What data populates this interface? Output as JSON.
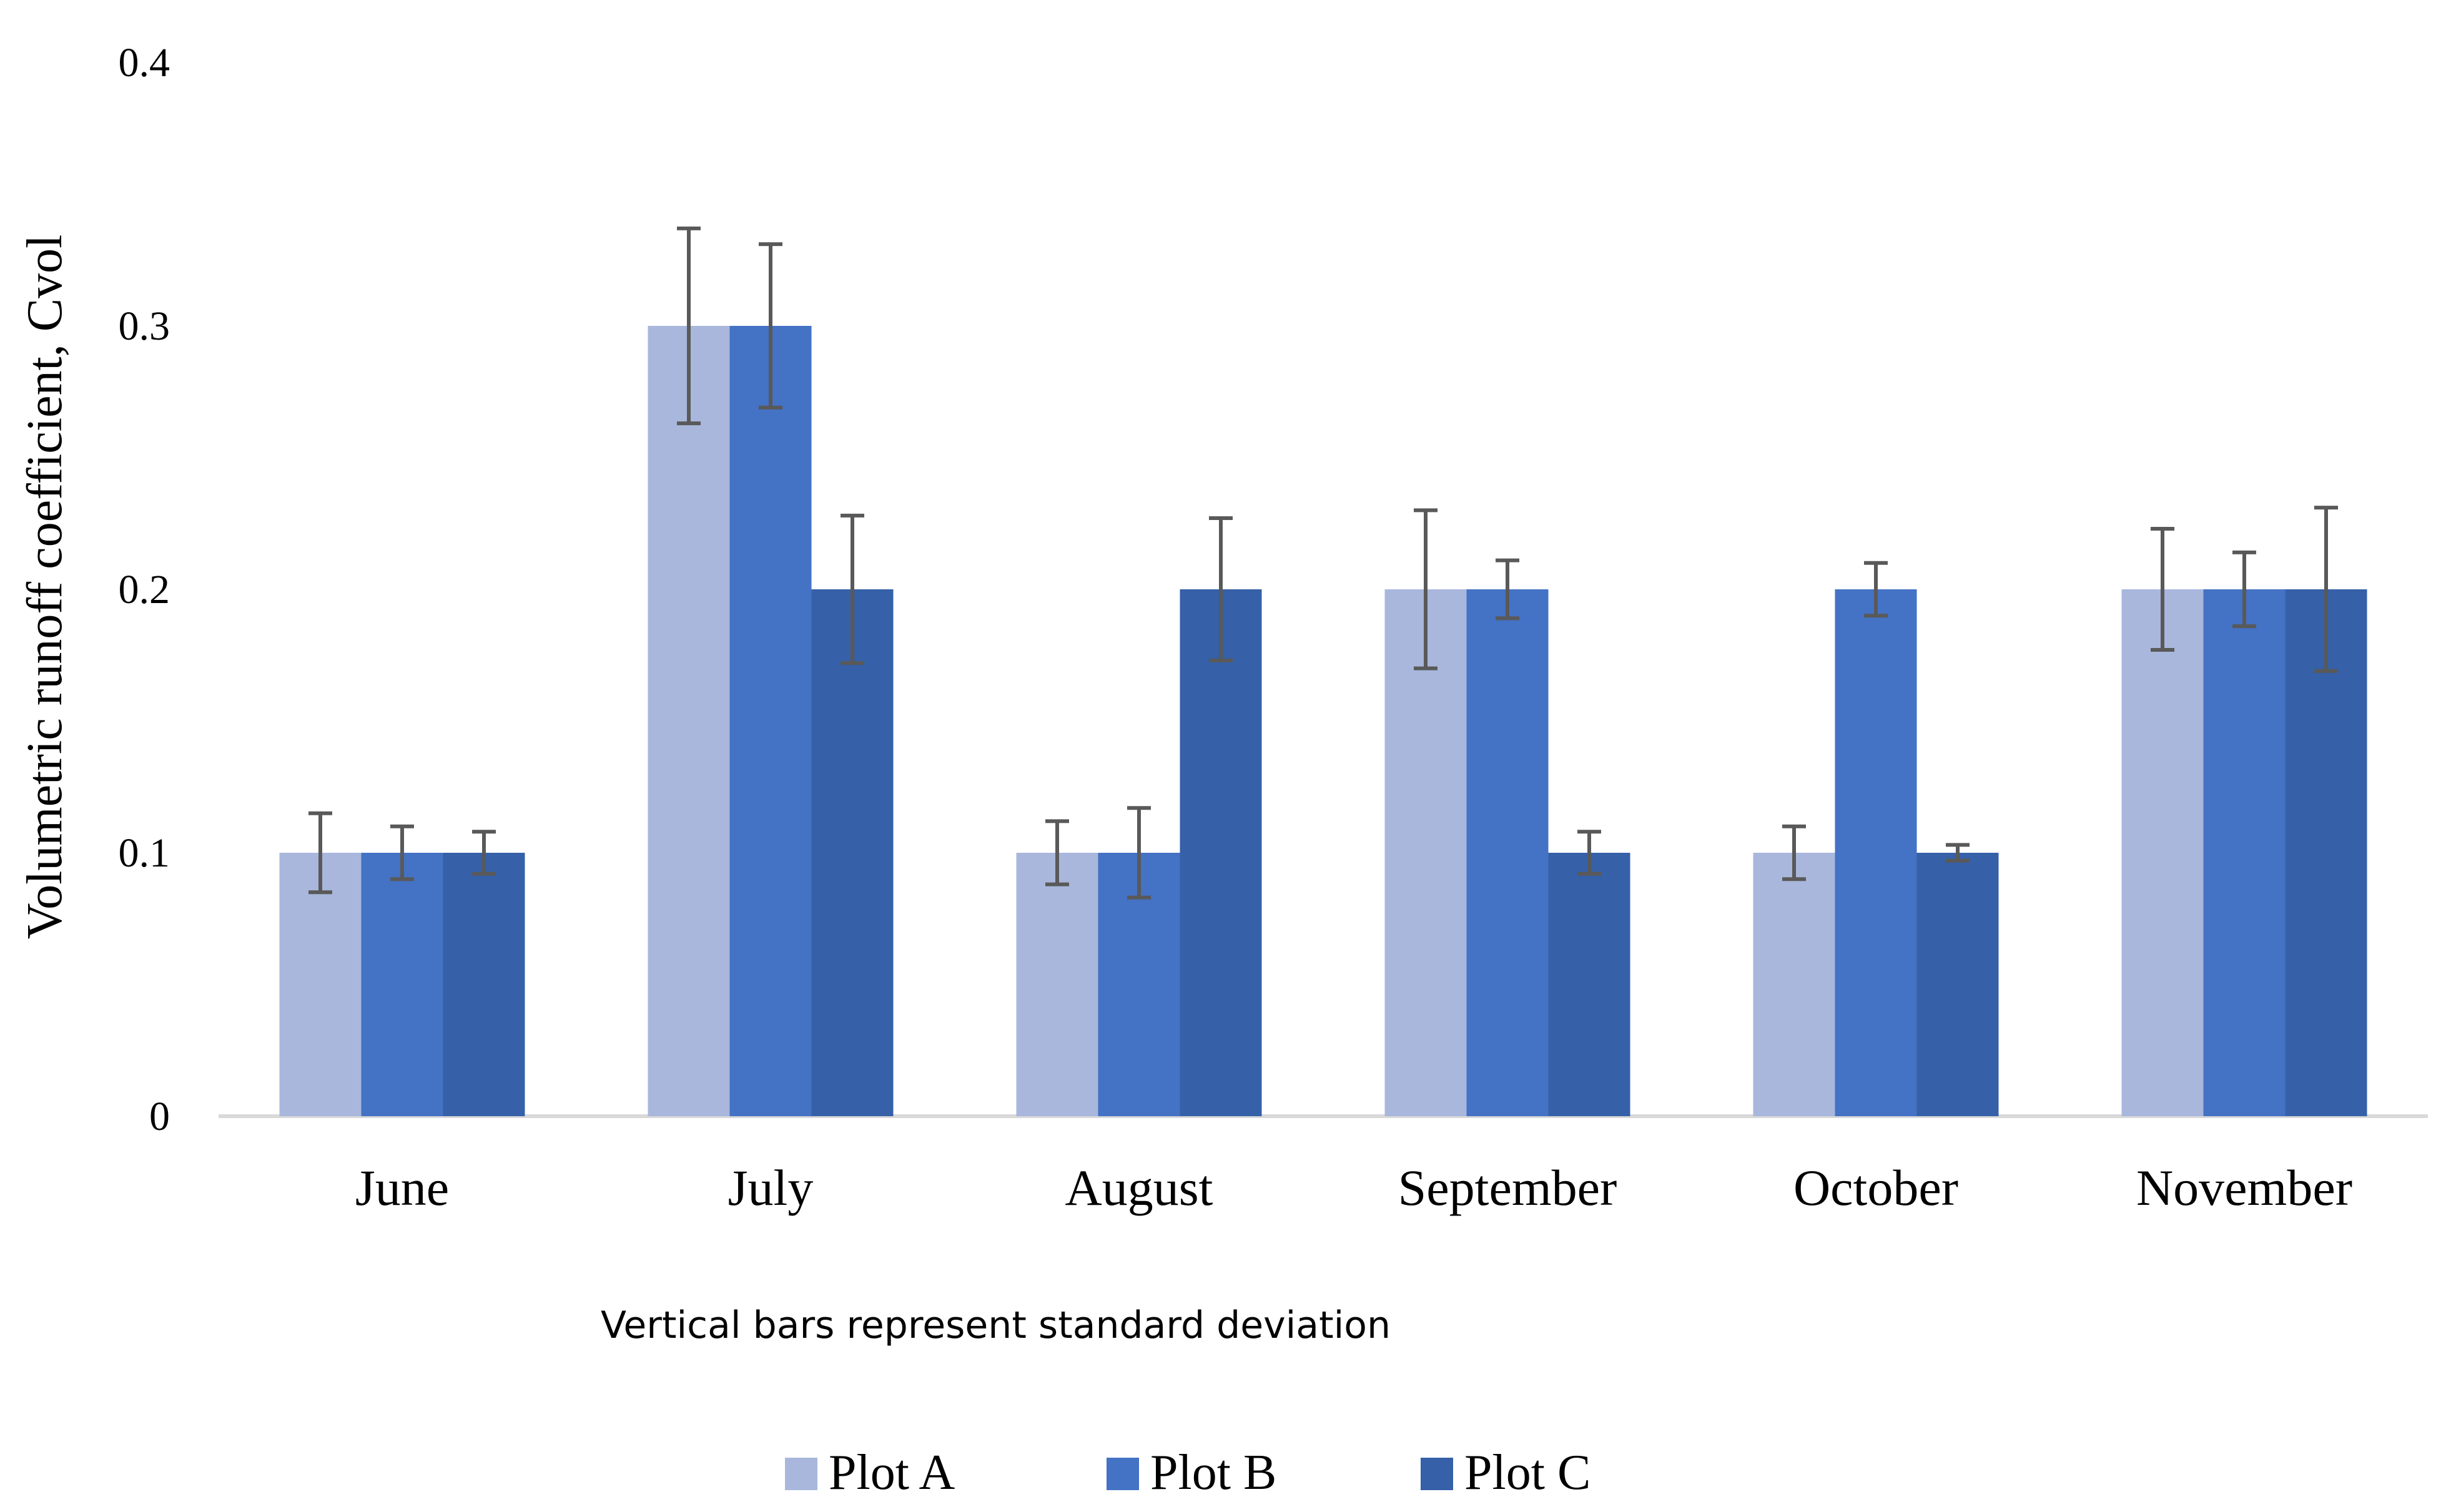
{
  "chart_data": {
    "type": "bar",
    "title": "",
    "xlabel": "",
    "ylabel": "Volumetric runoff coefficient, Cvol",
    "ylim": [
      0,
      0.4
    ],
    "yticks": [
      "0",
      "0.1",
      "0.2",
      "0.3",
      "0.4"
    ],
    "ytick_values": [
      0,
      0.1,
      0.2,
      0.3,
      0.4
    ],
    "grid": false,
    "legend_position": "bottom-center",
    "note": "Vertical bars represent standard deviation",
    "categories": [
      "June",
      "July",
      "August",
      "September",
      "October",
      "November"
    ],
    "series": [
      {
        "name": "Plot A",
        "color": "#A9B7DC",
        "values": [
          0.1,
          0.3,
          0.1,
          0.2,
          0.1,
          0.2
        ],
        "error": [
          0.015,
          0.037,
          0.012,
          0.03,
          0.01,
          0.023
        ]
      },
      {
        "name": "Plot B",
        "color": "#4472C4",
        "values": [
          0.1,
          0.3,
          0.1,
          0.2,
          0.2,
          0.2
        ],
        "error": [
          0.01,
          0.031,
          0.017,
          0.011,
          0.01,
          0.014
        ]
      },
      {
        "name": "Plot C",
        "color": "#3660A8",
        "values": [
          0.1,
          0.2,
          0.2,
          0.1,
          0.1,
          0.2
        ],
        "error": [
          0.008,
          0.028,
          0.027,
          0.008,
          0.003,
          0.031
        ]
      }
    ],
    "colors": {
      "axis": "#D9D9D9",
      "error_bar": "#595959",
      "text": "#000000"
    }
  }
}
